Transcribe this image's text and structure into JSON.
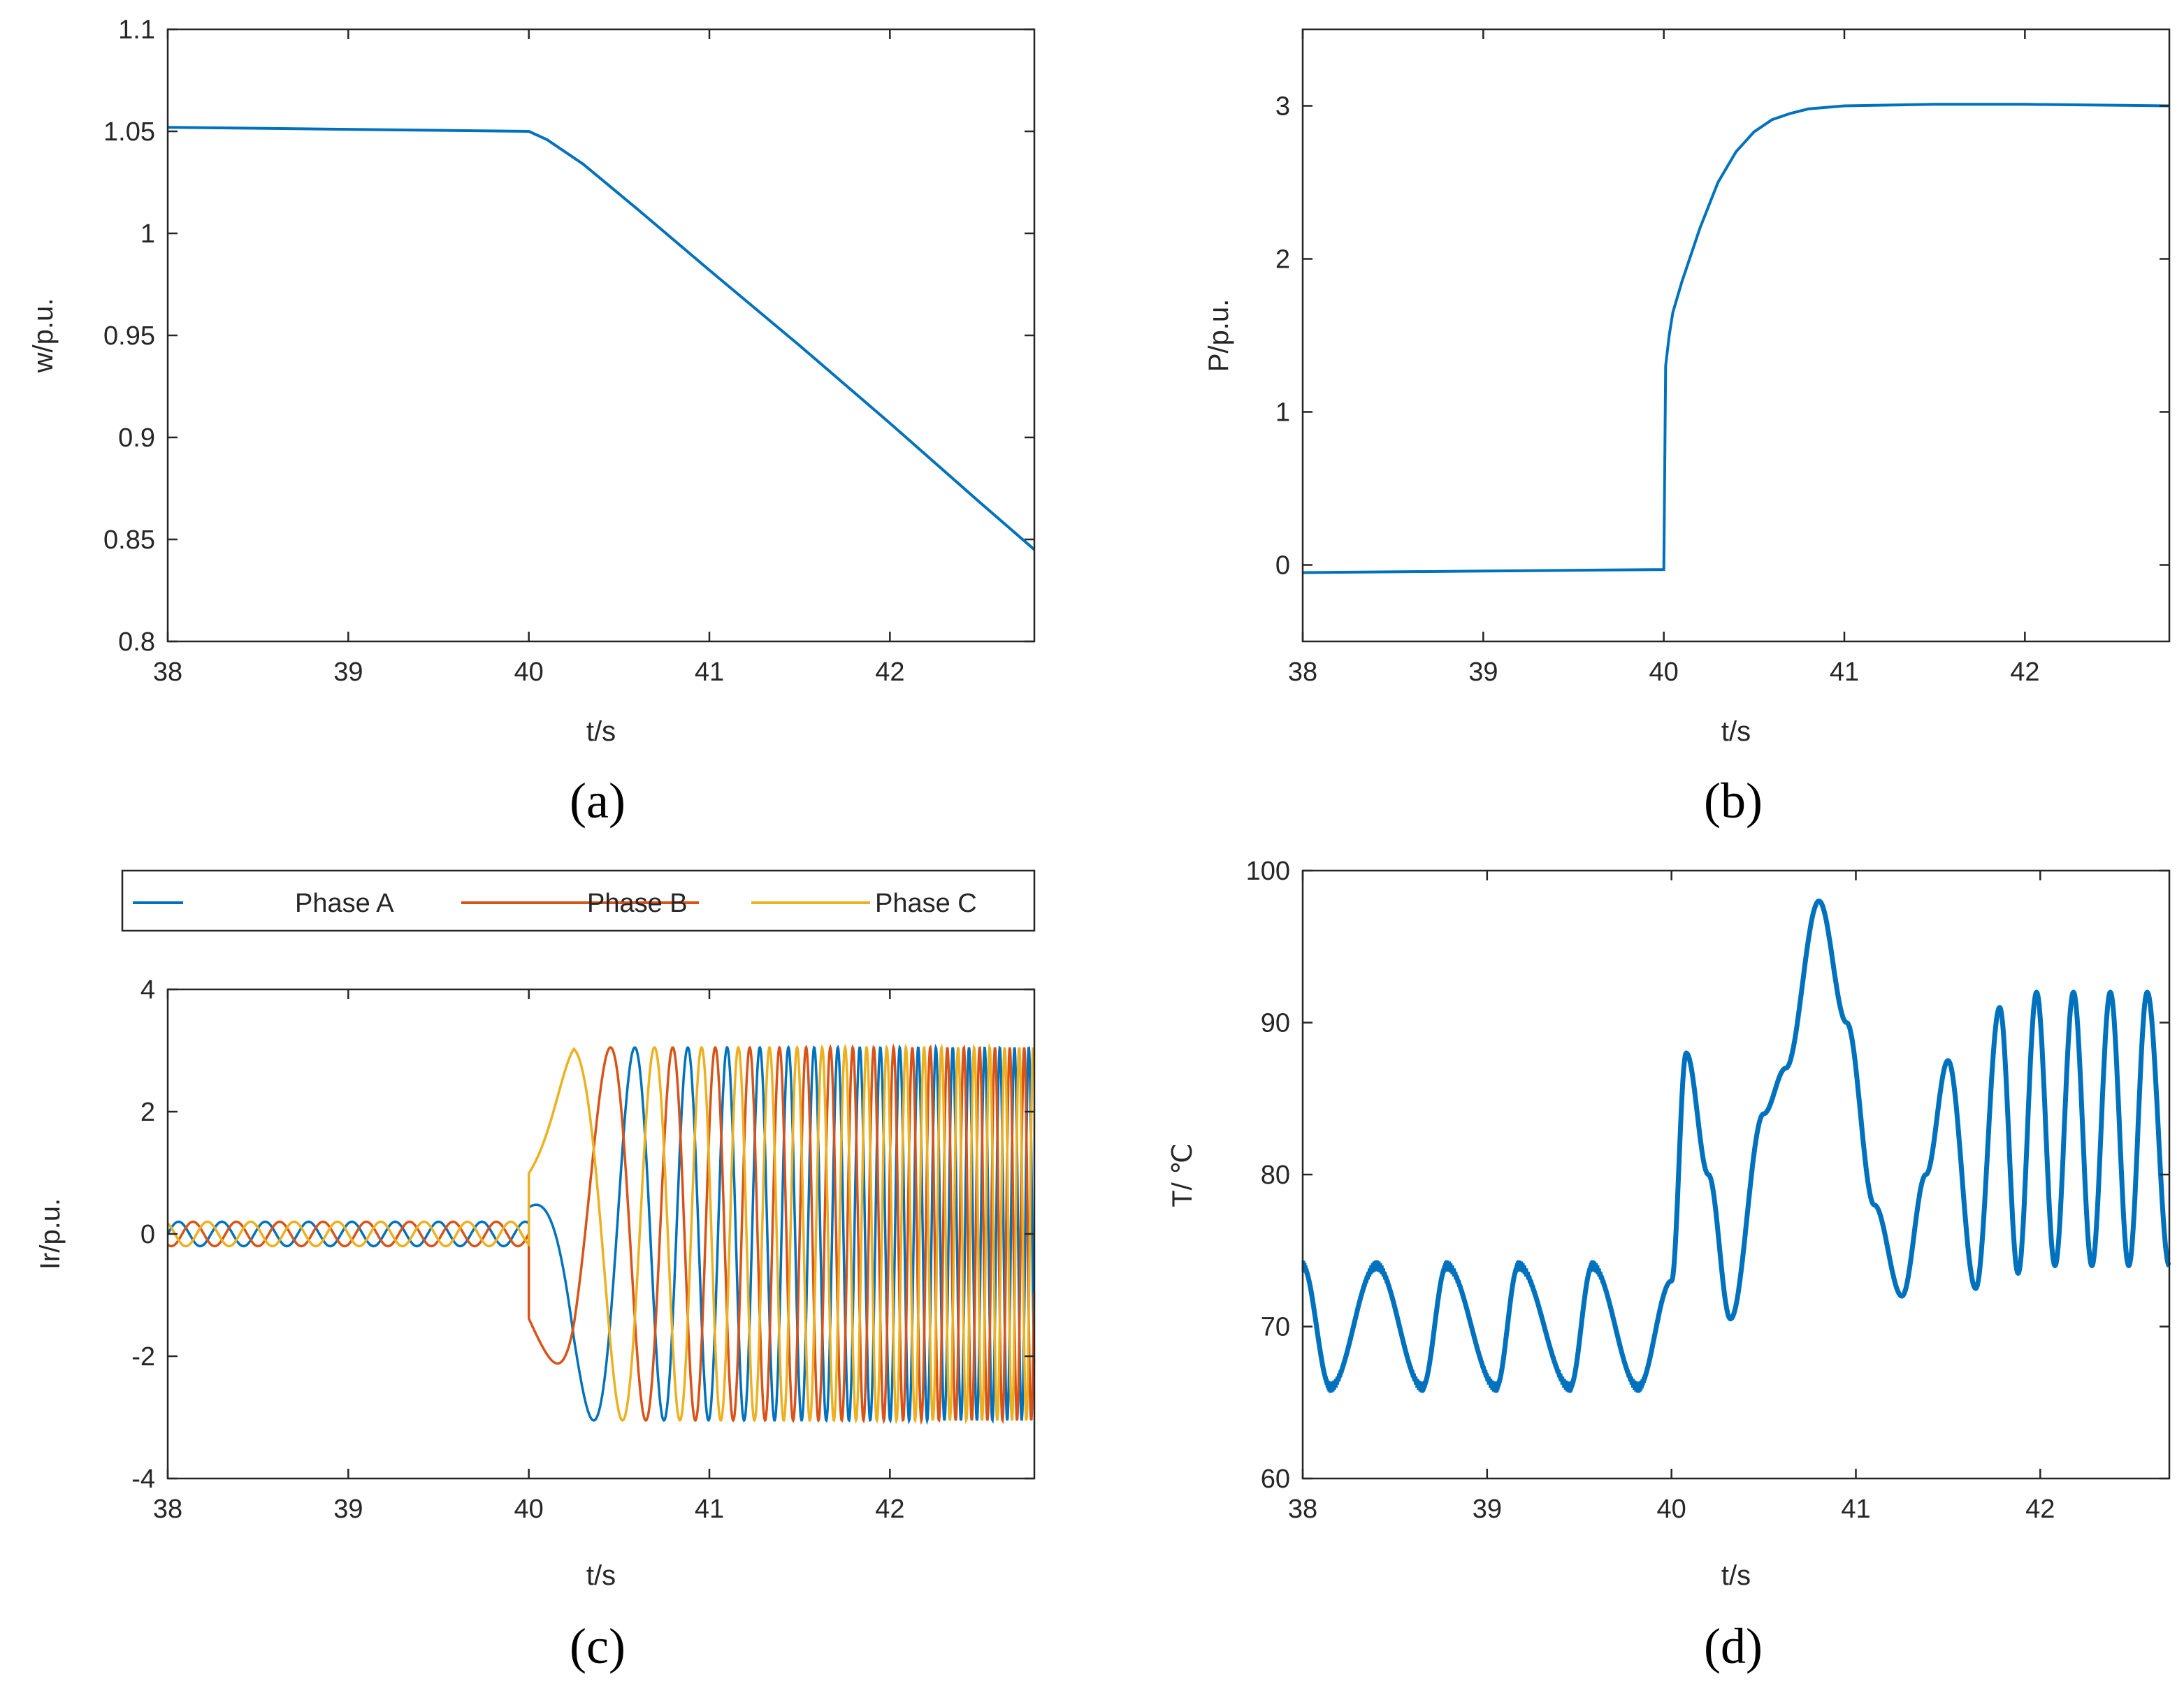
{
  "colors": {
    "axis": "#262626",
    "phase_a": "#0072BD",
    "phase_b": "#D95319",
    "phase_c": "#EDB120"
  },
  "chart_data": [
    {
      "id": "a",
      "type": "line",
      "caption": "(a)",
      "xlabel": "t/s",
      "ylabel": "w/p.u.",
      "xlim": [
        38,
        42.8
      ],
      "ylim": [
        0.8,
        1.1
      ],
      "xticks": [
        "38",
        "39",
        "40",
        "41",
        "42"
      ],
      "yticks": [
        "0.8",
        "0.85",
        "0.9",
        "0.95",
        "1",
        "1.05",
        "1.1"
      ],
      "grid": false,
      "series": [
        {
          "color": "#0072BD",
          "x": [
            38,
            40,
            40.1,
            40.3,
            40.6,
            41.0,
            41.5,
            42.0,
            42.5,
            42.8
          ],
          "y": [
            1.052,
            1.05,
            1.046,
            1.034,
            1.012,
            0.982,
            0.945,
            0.907,
            0.868,
            0.845
          ]
        }
      ]
    },
    {
      "id": "b",
      "type": "line",
      "caption": "(b)",
      "xlabel": "t/s",
      "ylabel": "P/p.u.",
      "xlim": [
        38,
        42.8
      ],
      "ylim": [
        -0.5,
        3.5
      ],
      "xticks": [
        "38",
        "39",
        "40",
        "41",
        "42"
      ],
      "yticks": [
        "0",
        "1",
        "2",
        "3"
      ],
      "grid": false,
      "series": [
        {
          "color": "#0072BD",
          "x": [
            38,
            39,
            40,
            40.01,
            40.03,
            40.05,
            40.1,
            40.2,
            40.3,
            40.4,
            40.5,
            40.6,
            40.7,
            40.8,
            41.0,
            41.5,
            42.0,
            42.8
          ],
          "y": [
            -0.05,
            -0.04,
            -0.03,
            1.3,
            1.5,
            1.65,
            1.85,
            2.2,
            2.5,
            2.7,
            2.83,
            2.91,
            2.95,
            2.98,
            3.0,
            3.01,
            3.01,
            3.0
          ]
        }
      ]
    },
    {
      "id": "c",
      "type": "line",
      "caption": "(c)",
      "xlabel": "t/s",
      "ylabel": "Ir/p.u.",
      "xlim": [
        38,
        42.8
      ],
      "ylim": [
        -4,
        4
      ],
      "xticks": [
        "38",
        "39",
        "40",
        "41",
        "42"
      ],
      "yticks": [
        "-4",
        "-2",
        "0",
        "2",
        "4"
      ],
      "grid": false,
      "legend": {
        "position": "above-plot",
        "entries": [
          "Phase A",
          "Phase B",
          "Phase C"
        ]
      },
      "series": [
        {
          "name": "Phase A",
          "color": "#0072BD"
        },
        {
          "name": "Phase B",
          "color": "#D95319"
        },
        {
          "name": "Phase C",
          "color": "#EDB120"
        }
      ],
      "pre_fault": {
        "amplitude": 0.2,
        "period_s": 0.24,
        "t_end": 40.0
      },
      "post_fault": {
        "amplitude": 3.05,
        "t_start": 40.0,
        "freq_start_hz": 0.0,
        "freq_end_hz": 13.0
      }
    },
    {
      "id": "d",
      "type": "line",
      "caption": "(d)",
      "xlabel": "t/s",
      "ylabel": "T/ ℃",
      "xlim": [
        38,
        42.7
      ],
      "ylim": [
        60,
        100
      ],
      "xticks": [
        "38",
        "39",
        "40",
        "41",
        "42"
      ],
      "yticks": [
        "60",
        "70",
        "80",
        "90",
        "100"
      ],
      "grid": false,
      "series": [
        {
          "color": "#0072BD",
          "x": [
            38.0,
            38.15,
            38.4,
            38.65,
            38.78,
            39.05,
            39.17,
            39.45,
            39.57,
            39.82,
            40.0,
            40.08,
            40.2,
            40.32,
            40.5,
            40.62,
            40.8,
            40.95,
            41.1,
            41.25,
            41.38,
            41.5,
            41.65,
            41.78,
            41.88,
            41.98,
            42.08,
            42.18,
            42.28,
            42.38,
            42.48,
            42.58,
            42.7
          ],
          "y": [
            74,
            66,
            74,
            66,
            74,
            66,
            74,
            66,
            74,
            66,
            73,
            88,
            80,
            70.5,
            84,
            87,
            98,
            90,
            78,
            72,
            80,
            87.5,
            72.5,
            91,
            73.5,
            92,
            74,
            92,
            74,
            92,
            74,
            92,
            74
          ]
        }
      ]
    }
  ]
}
